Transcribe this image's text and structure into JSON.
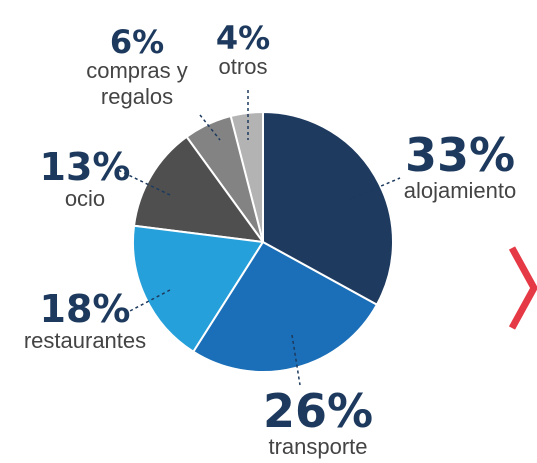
{
  "chart_data": {
    "type": "pie",
    "categories": [
      "alojamiento",
      "transporte",
      "restaurantes",
      "ocio",
      "compras y regalos",
      "otros"
    ],
    "values": [
      33,
      26,
      18,
      13,
      6,
      4
    ],
    "value_labels": [
      "33%",
      "26%",
      "18%",
      "13%",
      "6%",
      "4%"
    ],
    "colors": [
      "#1e3a5f",
      "#1a6fb8",
      "#26a0da",
      "#4f4f4f",
      "#838383",
      "#b3b3b3"
    ]
  }
}
